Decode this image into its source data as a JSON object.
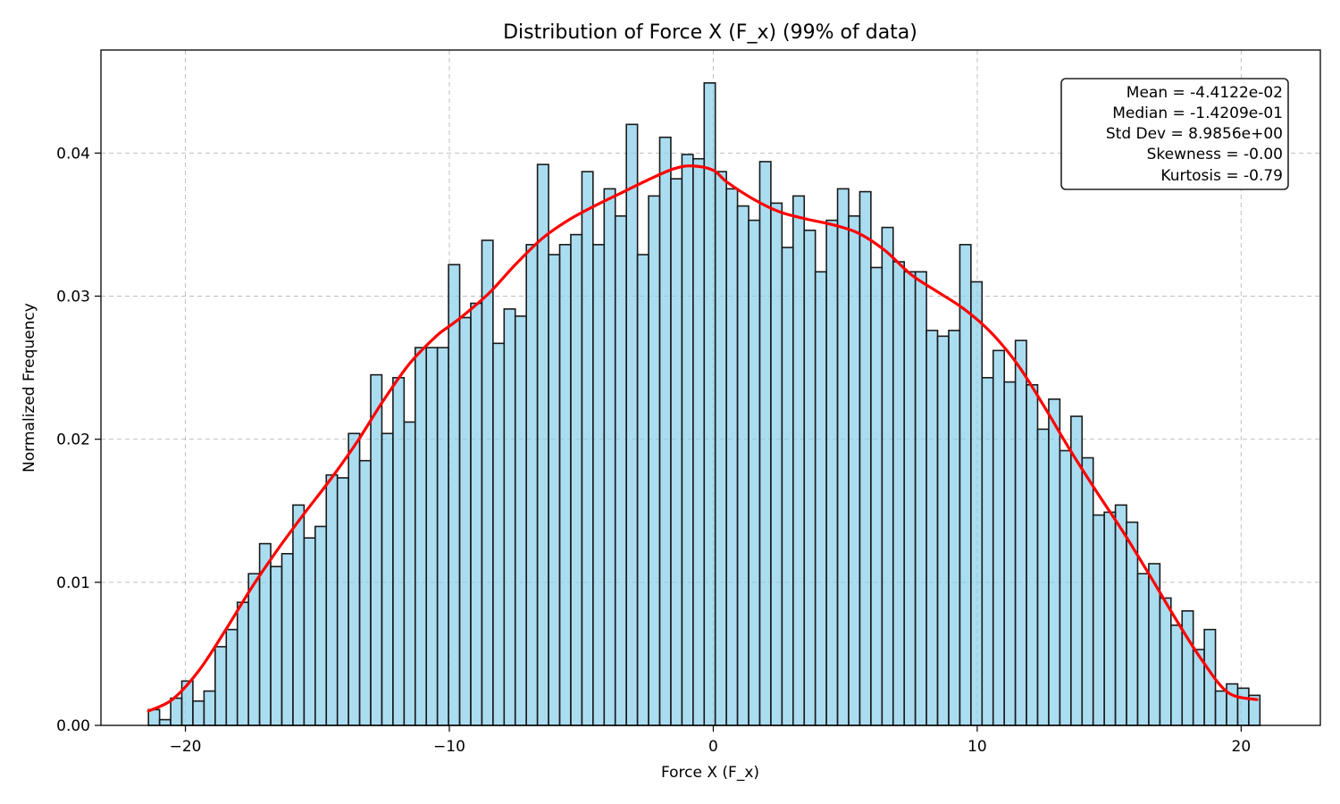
{
  "chart_data": {
    "type": "bar",
    "subtype": "histogram",
    "title": "Distribution of Force X (F_x) (99% of data)",
    "xlabel": "Force X (F_x)",
    "ylabel": "Normalized Frequency",
    "xlim": [
      -23.2,
      23.0
    ],
    "ylim": [
      0,
      0.0472
    ],
    "grid": true,
    "x_ticks": [
      {
        "value": -20,
        "label": "−20"
      },
      {
        "value": -10,
        "label": "−10"
      },
      {
        "value": 0,
        "label": "0"
      },
      {
        "value": 10,
        "label": "10"
      },
      {
        "value": 20,
        "label": "20"
      }
    ],
    "y_ticks": [
      {
        "value": 0,
        "label": "0.00"
      },
      {
        "value": 0.01,
        "label": "0.01"
      },
      {
        "value": 0.02,
        "label": "0.02"
      },
      {
        "value": 0.03,
        "label": "0.03"
      },
      {
        "value": 0.04,
        "label": "0.04"
      }
    ],
    "bins": {
      "start": -21.4,
      "width": 0.4211,
      "values": [
        0.0011,
        0.0004,
        0.0019,
        0.0031,
        0.0017,
        0.0024,
        0.0055,
        0.0067,
        0.0086,
        0.0106,
        0.0127,
        0.0111,
        0.012,
        0.0154,
        0.0131,
        0.0139,
        0.0175,
        0.0173,
        0.0204,
        0.0185,
        0.0245,
        0.0204,
        0.0243,
        0.0212,
        0.0264,
        0.0264,
        0.0264,
        0.0322,
        0.0285,
        0.0295,
        0.0339,
        0.0267,
        0.0291,
        0.0286,
        0.0336,
        0.0392,
        0.0329,
        0.0336,
        0.0343,
        0.0387,
        0.0336,
        0.0375,
        0.0356,
        0.042,
        0.0329,
        0.037,
        0.0411,
        0.0382,
        0.0399,
        0.0396,
        0.0449,
        0.0387,
        0.0375,
        0.0363,
        0.0353,
        0.0394,
        0.0365,
        0.0334,
        0.037,
        0.0346,
        0.0317,
        0.0353,
        0.0375,
        0.0356,
        0.0373,
        0.032,
        0.0348,
        0.0324,
        0.0317,
        0.0317,
        0.0276,
        0.0272,
        0.0276,
        0.0336,
        0.031,
        0.0243,
        0.0262,
        0.024,
        0.0269,
        0.0238,
        0.0207,
        0.0228,
        0.0192,
        0.0216,
        0.0187,
        0.0147,
        0.0149,
        0.0154,
        0.0142,
        0.0106,
        0.0113,
        0.0089,
        0.007,
        0.008,
        0.0053,
        0.0067,
        0.0024,
        0.0029,
        0.0026,
        0.0021
      ]
    },
    "kde": {
      "name": "KDE",
      "color": "#ff0000",
      "x": [
        -21.4,
        -20.5,
        -19.5,
        -18.5,
        -17.5,
        -16.5,
        -15.5,
        -14.5,
        -13.5,
        -12.5,
        -11.5,
        -10.5,
        -10,
        -9.5,
        -8.5,
        -7.5,
        -6.5,
        -5.5,
        -4.5,
        -3.5,
        -2.5,
        -1.5,
        -0.8,
        0,
        0.5,
        1.5,
        2.5,
        3.5,
        4.5,
        5.5,
        6.5,
        7.5,
        8.5,
        9.5,
        10.5,
        11.5,
        12.5,
        13.5,
        14.5,
        15.5,
        16.5,
        17.5,
        18.5,
        19.5,
        20.6
      ],
      "y": [
        0.001,
        0.0018,
        0.0038,
        0.0066,
        0.0096,
        0.0123,
        0.0148,
        0.0172,
        0.0198,
        0.0227,
        0.0253,
        0.0272,
        0.0279,
        0.0286,
        0.0302,
        0.0322,
        0.034,
        0.0353,
        0.0363,
        0.0372,
        0.0381,
        0.0389,
        0.0391,
        0.0388,
        0.038,
        0.0368,
        0.0359,
        0.0354,
        0.035,
        0.0344,
        0.0332,
        0.0315,
        0.0303,
        0.0291,
        0.0275,
        0.0253,
        0.0224,
        0.0193,
        0.0164,
        0.0136,
        0.0106,
        0.0075,
        0.0046,
        0.0023,
        0.0018
      ]
    },
    "stats_box": {
      "placement": "top-right",
      "lines": [
        "Mean = -4.4122e-02",
        "Median = -1.4209e-01",
        "Std Dev = 8.9856e+00",
        "Skewness = -0.00",
        "Kurtosis = -0.79"
      ]
    },
    "colors": {
      "bar_fill": "#87ceeb",
      "bar_edge": "#1a1a1a",
      "kde_line": "#ff0000"
    }
  }
}
